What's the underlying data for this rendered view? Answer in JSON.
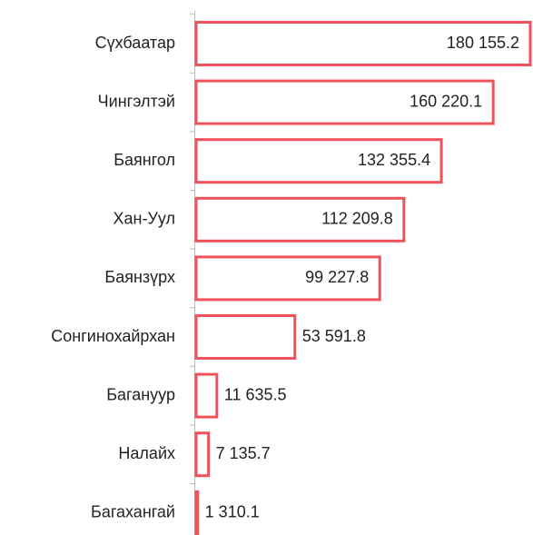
{
  "chart_data": {
    "type": "bar",
    "orientation": "horizontal",
    "categories": [
      "Сүхбаатар",
      "Чингэлтэй",
      "Баянгол",
      "Хан-Уул",
      "Баянзүрх",
      "Сонгинохайрхан",
      "Багануур",
      "Налайх",
      "Багахангай"
    ],
    "values": [
      180155.2,
      160220.1,
      132355.4,
      112209.8,
      99227.8,
      53591.8,
      11635.5,
      7135.7,
      1310.1
    ],
    "value_labels": [
      "180 155.2",
      "160 220.1",
      "132 355.4",
      "112 209.8",
      "99 227.8",
      "53 591.8",
      "11 635.5",
      "7 135.7",
      "1 310.1"
    ],
    "color": "#f0525b"
  }
}
